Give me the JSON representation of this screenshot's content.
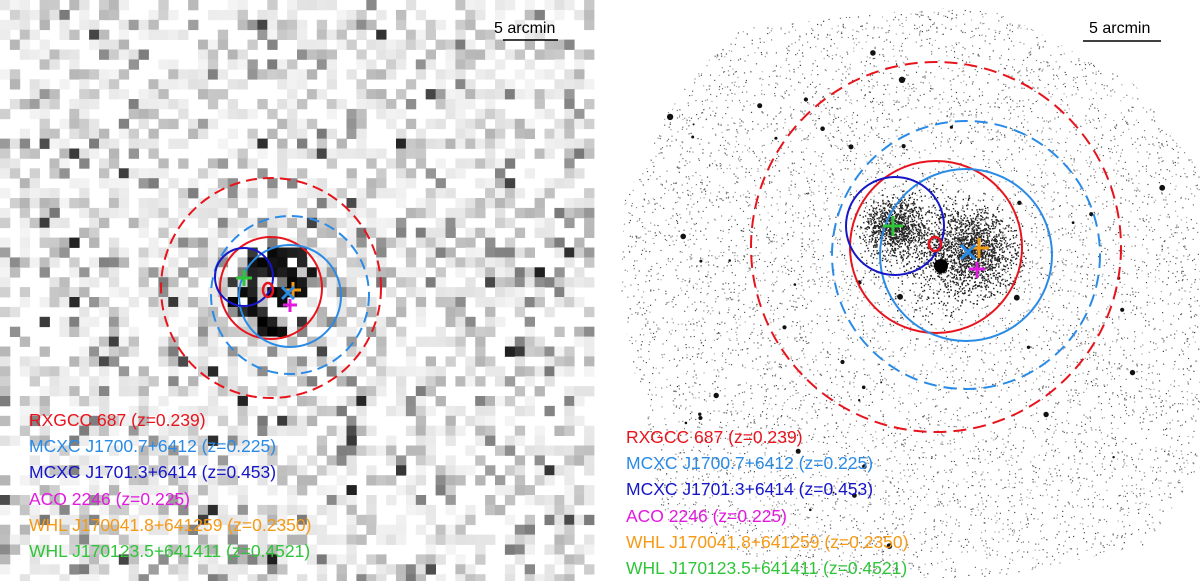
{
  "left_panel": {
    "scale_bar": "5 arcmin",
    "legend": [
      {
        "text": "RXGCC 687 (z=0.239)",
        "color": "#e8141d"
      },
      {
        "text": "MCXC J1700.7+6412 (z=0.225)",
        "color": "#2a8be6"
      },
      {
        "text": "MCXC J1701.3+6414 (z=0.453)",
        "color": "#1516c8"
      },
      {
        "text": "ACO 2246 (z=0.225)",
        "color": "#e21adf"
      },
      {
        "text": "WHL J170041.8+641259 (z=0.2350)",
        "color": "#f59a16"
      },
      {
        "text": "WHL J170123.5+641411 (z=0.4521)",
        "color": "#30c43a"
      }
    ]
  },
  "right_panel": {
    "scale_bar": "5 arcmin",
    "legend": [
      {
        "text": "RXGCC 687 (z=0.239)",
        "color": "#e8141d"
      },
      {
        "text": "MCXC J1700.7+6412 (z=0.225)",
        "color": "#2a8be6"
      },
      {
        "text": "MCXC J1701.3+6414 (z=0.453)",
        "color": "#1516c8"
      },
      {
        "text": "ACO 2246 (z=0.225)",
        "color": "#e21adf"
      },
      {
        "text": "WHL J170041.8+641259 (z=0.2350)",
        "color": "#f59a16"
      },
      {
        "text": "WHL J170123.5+641411 (z=0.4521)",
        "color": "#30c43a"
      }
    ]
  },
  "colors": {
    "rxgcc": "#e8141d",
    "mcxc_1700": "#2a8be6",
    "mcxc_1701": "#1516c8",
    "aco": "#e21adf",
    "whl_1700": "#f59a16",
    "whl_1701": "#30c43a"
  }
}
